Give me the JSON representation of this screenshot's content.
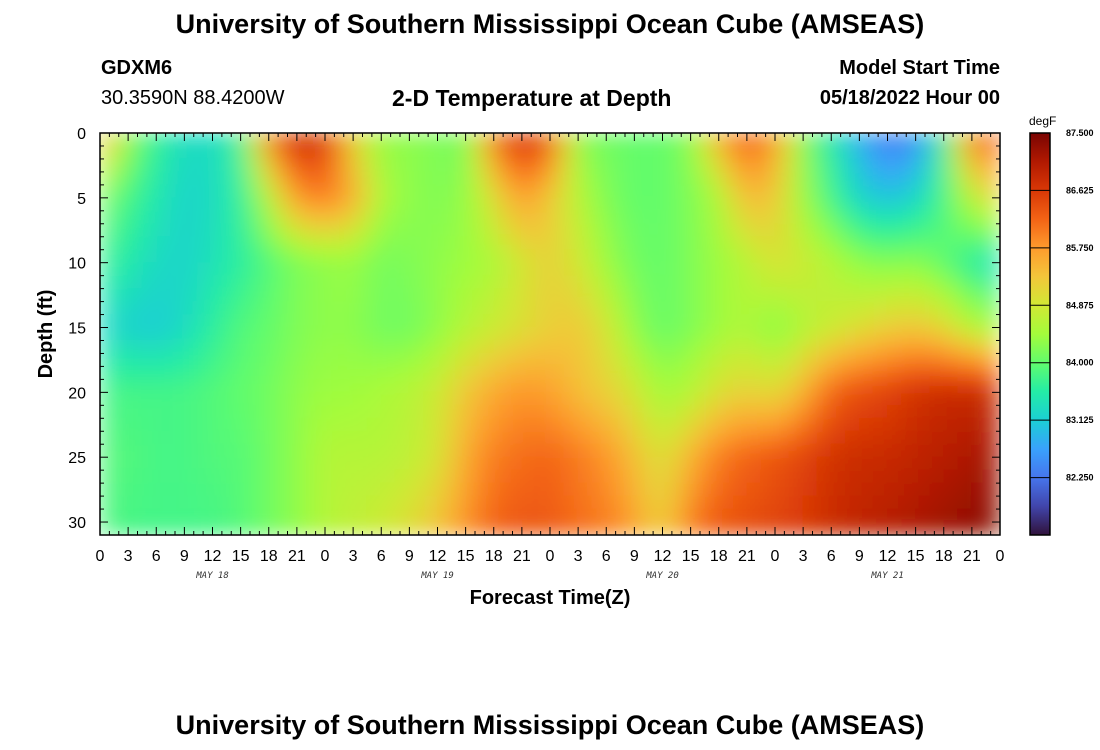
{
  "header": {
    "title": "University of Southern Mississippi Ocean Cube (AMSEAS)",
    "station": "GDXM6",
    "coords": "30.3590N  88.4200W",
    "plot_title": "2-D Temperature at Depth",
    "model_start_label": "Model Start Time",
    "model_start_value": "05/18/2022 Hour 00"
  },
  "footer": {
    "title": "University of Southern Mississippi Ocean Cube (AMSEAS)"
  },
  "colors": {
    "colormap": [
      "#30123b",
      "#4145ab",
      "#4675ed",
      "#39a2fc",
      "#1bcfd4",
      "#24eca6",
      "#61fc6c",
      "#a4fc3b",
      "#d1e834",
      "#f3c63a",
      "#fe9b2d",
      "#f36315",
      "#d93806",
      "#b11901",
      "#7a0402"
    ]
  },
  "chart_data": {
    "type": "heatmap",
    "xlabel": "Forecast Time(Z)",
    "ylabel": "Depth (ft)",
    "colorbar": {
      "unit": "degF",
      "min": 81.375,
      "max": 87.5,
      "tick_labels": [
        "87.500",
        "86.625",
        "85.750",
        "84.875",
        "84.000",
        "83.125",
        "82.250"
      ],
      "tick_values": [
        87.5,
        86.625,
        85.75,
        84.875,
        84.0,
        83.125,
        82.25
      ]
    },
    "x_range_hours": [
      0,
      96
    ],
    "x_tick_labels": [
      "0",
      "3",
      "6",
      "9",
      "12",
      "15",
      "18",
      "21",
      "0",
      "3",
      "6",
      "9",
      "12",
      "15",
      "18",
      "21",
      "0",
      "3",
      "6",
      "9",
      "12",
      "15",
      "18",
      "21",
      "0",
      "3",
      "6",
      "9",
      "12",
      "15",
      "18",
      "21",
      "0"
    ],
    "day_labels": [
      {
        "text": "MAY 18",
        "hour": 12
      },
      {
        "text": "MAY 19",
        "hour": 36
      },
      {
        "text": "MAY 20",
        "hour": 60
      },
      {
        "text": "MAY 21",
        "hour": 84
      }
    ],
    "y_range": [
      0,
      31
    ],
    "y_ticks": [
      0,
      5,
      10,
      15,
      20,
      25,
      30
    ],
    "depths": [
      0,
      5,
      10,
      15,
      20,
      25,
      30
    ],
    "hours": [
      0,
      3,
      6,
      9,
      12,
      15,
      18,
      21,
      24,
      27,
      30,
      33,
      36,
      39,
      42,
      45,
      48,
      51,
      54,
      57,
      60,
      63,
      66,
      69,
      72,
      75,
      78,
      81,
      84,
      87,
      90,
      93,
      96
    ],
    "temperature": [
      [
        85.9,
        84.3,
        83.7,
        83.3,
        83.3,
        83.6,
        86.1,
        86.9,
        86.8,
        85.1,
        84.3,
        84.3,
        84.2,
        84.0,
        86.2,
        86.8,
        86.5,
        84.2,
        84.1,
        84.0,
        84.0,
        84.2,
        85.6,
        86.4,
        85.8,
        84.2,
        83.5,
        82.8,
        82.2,
        82.4,
        83.6,
        86.2,
        86.4
      ],
      [
        84.3,
        83.8,
        83.5,
        83.2,
        83.3,
        83.6,
        84.6,
        85.8,
        86.0,
        85.6,
        84.5,
        84.3,
        84.2,
        84.3,
        85.0,
        85.8,
        85.3,
        84.6,
        84.2,
        84.0,
        84.0,
        84.2,
        84.5,
        85.5,
        85.3,
        84.4,
        83.8,
        83.2,
        83.0,
        83.2,
        83.8,
        84.7,
        85.2
      ],
      [
        83.8,
        83.5,
        83.3,
        83.2,
        83.4,
        83.6,
        83.9,
        84.2,
        84.3,
        84.4,
        84.1,
        84.2,
        84.3,
        84.4,
        84.5,
        84.9,
        85.2,
        84.9,
        84.4,
        84.1,
        84.0,
        84.2,
        84.4,
        84.6,
        85.0,
        84.8,
        84.6,
        84.3,
        84.2,
        84.3,
        84.0,
        83.6,
        83.3
      ],
      [
        83.3,
        83.2,
        83.1,
        83.3,
        83.6,
        83.9,
        84.0,
        84.2,
        84.3,
        84.3,
        84.1,
        84.1,
        84.3,
        84.6,
        84.8,
        85.0,
        85.2,
        85.3,
        84.9,
        84.3,
        84.0,
        84.2,
        84.4,
        84.6,
        84.2,
        84.6,
        84.8,
        85.0,
        85.2,
        85.3,
        85.1,
        84.6,
        84.4
      ],
      [
        83.8,
        83.8,
        83.8,
        83.8,
        83.9,
        84.0,
        84.1,
        84.3,
        84.4,
        84.4,
        84.5,
        84.6,
        84.8,
        85.3,
        85.6,
        85.8,
        85.7,
        85.4,
        85.2,
        84.9,
        84.4,
        84.6,
        85.0,
        85.2,
        85.0,
        85.5,
        86.2,
        86.4,
        86.5,
        86.7,
        86.8,
        86.8,
        86.8
      ],
      [
        83.9,
        83.9,
        83.8,
        83.8,
        83.9,
        83.9,
        84.1,
        84.3,
        84.6,
        84.6,
        84.6,
        84.7,
        84.9,
        85.6,
        86.0,
        86.1,
        86.2,
        86.0,
        85.8,
        85.4,
        84.9,
        85.5,
        86.0,
        86.2,
        86.3,
        86.5,
        86.7,
        86.8,
        86.8,
        86.9,
        87.0,
        87.1,
        87.2
      ],
      [
        83.9,
        83.8,
        83.8,
        83.8,
        83.8,
        83.9,
        84.1,
        84.3,
        84.6,
        84.7,
        84.8,
        85.0,
        85.3,
        85.8,
        86.2,
        86.3,
        86.3,
        86.1,
        86.0,
        85.7,
        85.1,
        86.0,
        86.3,
        86.4,
        86.5,
        86.6,
        86.8,
        86.9,
        87.0,
        87.1,
        87.2,
        87.3,
        87.4
      ]
    ]
  }
}
